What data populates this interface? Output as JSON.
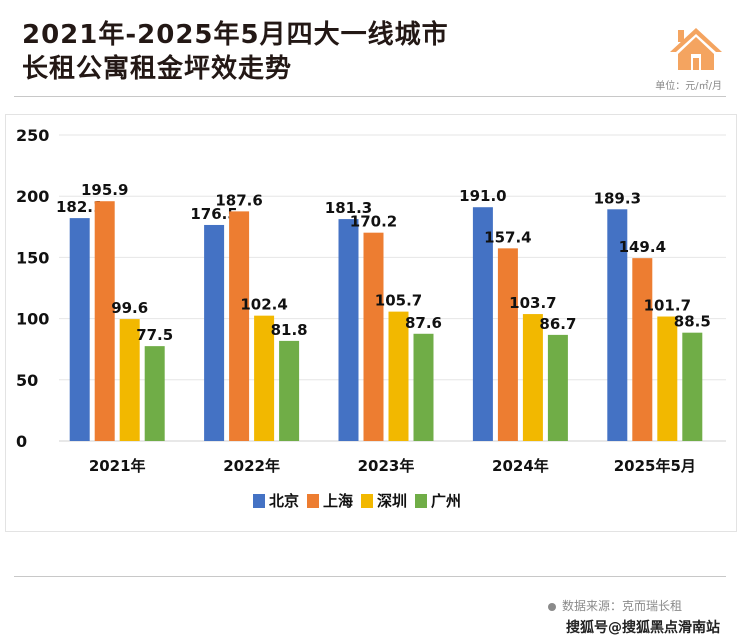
{
  "header": {
    "title_line1": "2021年-2025年5月四大一线城市",
    "title_line2": "长租公寓租金坪效走势",
    "unit": "单位：元/㎡/月",
    "icon": "house-icon"
  },
  "footer": {
    "source": "数据来源：克而瑞长租",
    "credit": "搜狐号@搜狐黑点滑南站"
  },
  "chart_data": {
    "type": "bar",
    "title": "2021年-2025年5月四大一线城市长租公寓租金坪效走势",
    "xlabel": "",
    "ylabel": "",
    "unit": "元/㎡/月",
    "ylim": [
      0,
      250
    ],
    "yticks": [
      0,
      50,
      100,
      150,
      200,
      250
    ],
    "grid": true,
    "legend_position": "bottom",
    "categories": [
      "2021年",
      "2022年",
      "2023年",
      "2024年",
      "2025年5月"
    ],
    "series": [
      {
        "name": "北京",
        "color": "#4472C4",
        "values": [
          182.1,
          176.5,
          181.3,
          191.0,
          189.3
        ]
      },
      {
        "name": "上海",
        "color": "#ED7D31",
        "values": [
          195.9,
          187.6,
          170.2,
          157.4,
          149.4
        ]
      },
      {
        "name": "深圳",
        "color": "#F2B800",
        "values": [
          99.6,
          102.4,
          105.7,
          103.7,
          101.7
        ]
      },
      {
        "name": "广州",
        "color": "#70AD47",
        "values": [
          77.5,
          81.8,
          87.6,
          86.7,
          88.5
        ]
      }
    ]
  }
}
